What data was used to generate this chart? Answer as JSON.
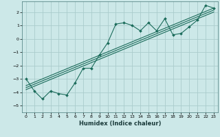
{
  "title": "",
  "xlabel": "Humidex (Indice chaleur)",
  "ylabel": "",
  "bg_color": "#cce8e8",
  "grid_color": "#aacccc",
  "line_color": "#1a6b5a",
  "xlim": [
    -0.5,
    23.5
  ],
  "ylim": [
    -5.5,
    2.8
  ],
  "x_ticks": [
    0,
    1,
    2,
    3,
    4,
    5,
    6,
    7,
    8,
    9,
    10,
    11,
    12,
    13,
    14,
    15,
    16,
    17,
    18,
    19,
    20,
    21,
    22,
    23
  ],
  "y_ticks": [
    -5,
    -4,
    -3,
    -2,
    -1,
    0,
    1,
    2
  ],
  "scatter_x": [
    0,
    1,
    2,
    3,
    4,
    5,
    6,
    7,
    8,
    9,
    10,
    11,
    12,
    13,
    14,
    15,
    16,
    17,
    18,
    19,
    20,
    21,
    22,
    23
  ],
  "scatter_y": [
    -3.0,
    -3.9,
    -4.5,
    -3.9,
    -4.1,
    -4.2,
    -3.3,
    -2.2,
    -2.2,
    -1.2,
    -0.3,
    1.1,
    1.2,
    1.0,
    0.6,
    1.2,
    0.6,
    1.5,
    0.3,
    0.4,
    0.9,
    1.4,
    2.5,
    2.3
  ],
  "line1_x": [
    0,
    23
  ],
  "line1_y": [
    -3.5,
    2.3
  ],
  "line2_x": [
    0,
    23
  ],
  "line2_y": [
    -3.65,
    2.15
  ],
  "line3_x": [
    0,
    23
  ],
  "line3_y": [
    -3.8,
    2.0
  ]
}
